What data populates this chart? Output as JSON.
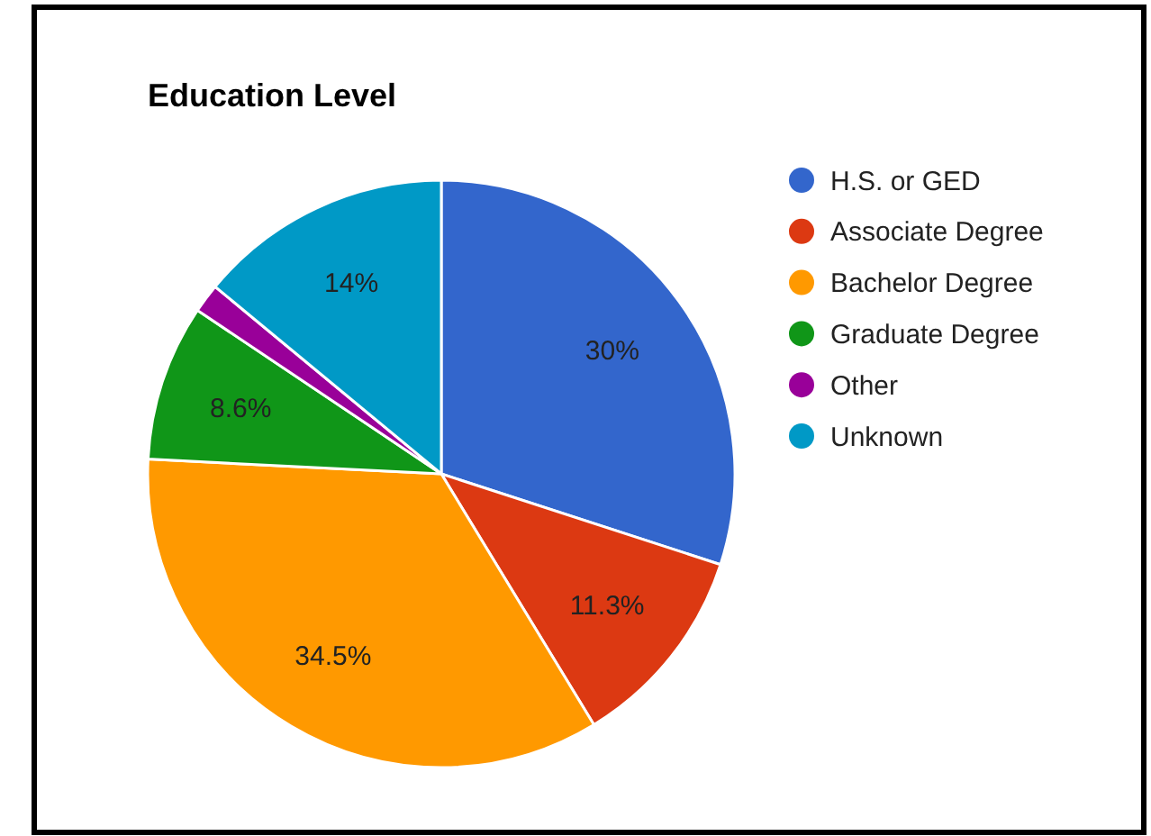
{
  "chart_data": {
    "type": "pie",
    "title": "Education Level",
    "categories": [
      "H.S. or GED",
      "Associate Degree",
      "Bachelor Degree",
      "Graduate Degree",
      "Other",
      "Unknown"
    ],
    "values": [
      30,
      11.3,
      34.5,
      8.6,
      1.6,
      14
    ],
    "colors": [
      "#3366cc",
      "#dc3912",
      "#ff9900",
      "#109618",
      "#990099",
      "#0099c6"
    ],
    "value_labels": [
      "30%",
      "11.3%",
      "34.5%",
      "8.6%",
      null,
      "14%"
    ],
    "legend": "right"
  }
}
